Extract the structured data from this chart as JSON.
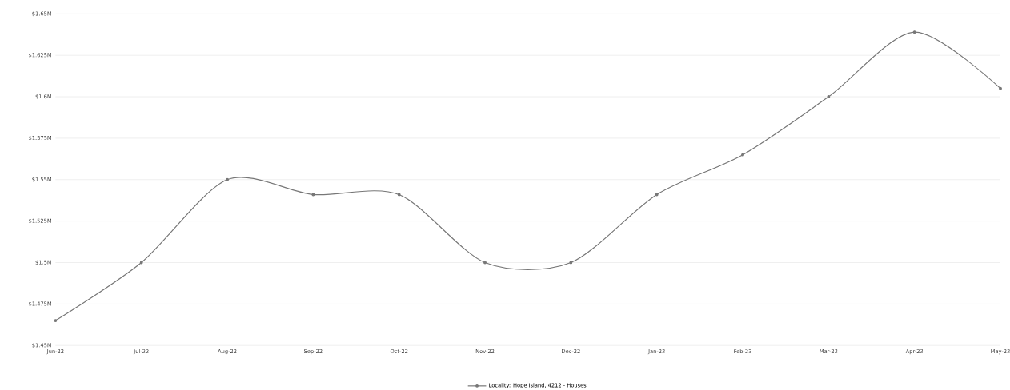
{
  "chart_data": {
    "type": "line",
    "categories": [
      "Jun-22",
      "Jul-22",
      "Aug-22",
      "Sep-22",
      "Oct-22",
      "Nov-22",
      "Dec-22",
      "Jan-23",
      "Feb-23",
      "Mar-23",
      "Apr-23",
      "May-23"
    ],
    "series": [
      {
        "name": "Locality: Hope Island, 4212 - Houses",
        "color": "#777777",
        "values": [
          1.465,
          1.5,
          1.55,
          1.541,
          1.541,
          1.5,
          1.5,
          1.541,
          1.565,
          1.6,
          1.639,
          1.605
        ]
      }
    ],
    "ylim": [
      1.45,
      1.65
    ],
    "yticks": [
      {
        "value": 1.45,
        "label": "$1.45M"
      },
      {
        "value": 1.475,
        "label": "$1.475M"
      },
      {
        "value": 1.5,
        "label": "$1.5M"
      },
      {
        "value": 1.525,
        "label": "$1.525M"
      },
      {
        "value": 1.55,
        "label": "$1.55M"
      },
      {
        "value": 1.575,
        "label": "$1.575M"
      },
      {
        "value": 1.6,
        "label": "$1.6M"
      },
      {
        "value": 1.625,
        "label": "$1.625M"
      },
      {
        "value": 1.65,
        "label": "$1.65M"
      }
    ],
    "grid": "y",
    "legend": "bottom",
    "marker": "circle",
    "line_style": "solid"
  }
}
